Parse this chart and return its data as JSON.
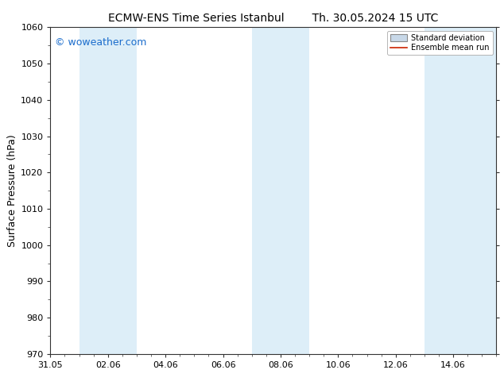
{
  "title_left": "ECMW-ENS Time Series Istanbul",
  "title_right": "Th. 30.05.2024 15 UTC",
  "ylabel": "Surface Pressure (hPa)",
  "ylim": [
    970,
    1060
  ],
  "yticks": [
    970,
    980,
    990,
    1000,
    1010,
    1020,
    1030,
    1040,
    1050,
    1060
  ],
  "xtick_labels": [
    "31.05",
    "02.06",
    "04.06",
    "06.06",
    "08.06",
    "10.06",
    "12.06",
    "14.06"
  ],
  "xtick_positions": [
    0,
    2,
    4,
    6,
    8,
    10,
    12,
    14
  ],
  "x_min": 0,
  "x_max": 15.5,
  "bg_color": "#ffffff",
  "plot_bg_color": "#ffffff",
  "shaded_bands": [
    {
      "x_start": 1.0,
      "x_end": 3.0,
      "color": "#ddeef8"
    },
    {
      "x_start": 7.0,
      "x_end": 9.0,
      "color": "#ddeef8"
    },
    {
      "x_start": 13.0,
      "x_end": 15.5,
      "color": "#ddeef8"
    }
  ],
  "watermark_text": "© woweather.com",
  "watermark_color": "#1a6ccc",
  "watermark_fontsize": 9,
  "legend_std_color": "#c8d8e8",
  "legend_std_edge": "#888888",
  "legend_mean_color": "#cc2200",
  "title_fontsize": 10,
  "ylabel_fontsize": 9,
  "tick_fontsize": 8,
  "spine_color": "#333333",
  "tick_color": "#333333"
}
